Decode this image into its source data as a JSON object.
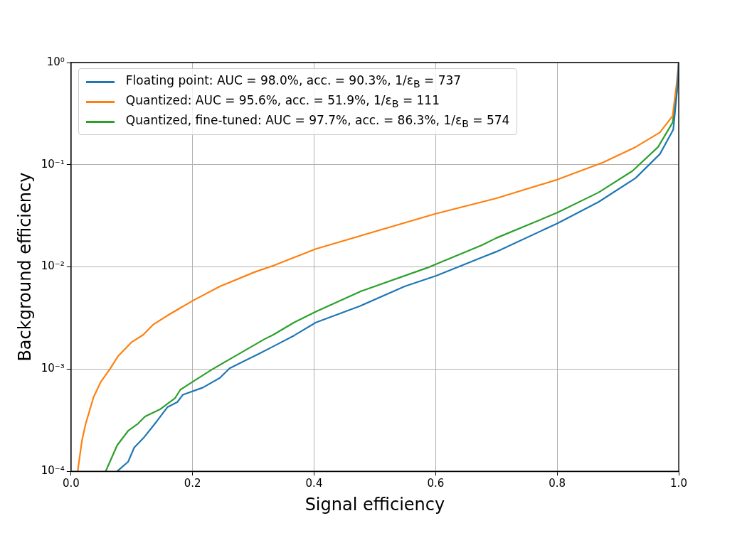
{
  "chart_data": {
    "type": "line",
    "xlabel": "Signal efficiency",
    "ylabel": "Background efficiency",
    "log": "y",
    "grid": true,
    "legend": "top left",
    "marker": "none",
    "line_style": "solid",
    "xlim": [
      0,
      1
    ],
    "xticks": [
      {
        "value": 0,
        "label": "0.0"
      },
      0.2,
      0.4,
      0.6,
      0.8,
      {
        "value": 1,
        "label": "1.0"
      }
    ],
    "ylim": [
      0.0001,
      1
    ],
    "yticks": [
      {
        "value": 0.0001,
        "label": "10⁻⁴"
      },
      {
        "value": 0.001,
        "label": "10⁻³"
      },
      {
        "value": 0.01,
        "label": "10⁻²"
      },
      {
        "value": 0.1,
        "label": "10⁻¹"
      },
      {
        "value": 1,
        "label": "10⁰"
      }
    ],
    "series": [
      {
        "name": "Floating point: AUC = 98.0%, acc. = 90.3%, 1/ε$_{B}$ = 737",
        "color": "#1f77b4",
        "x": [
          0.076,
          0.094,
          0.104,
          0.119,
          0.141,
          0.159,
          0.175,
          0.184,
          0.217,
          0.245,
          0.261,
          0.31,
          0.333,
          0.367,
          0.403,
          0.476,
          0.549,
          0.601,
          0.676,
          0.7,
          0.8,
          0.868,
          0.929,
          0.969,
          0.991,
          0.998,
          1
        ],
        "values": [
          0.0001,
          0.000124,
          0.000171,
          0.000211,
          0.000308,
          0.000426,
          0.000476,
          0.000561,
          0.00066,
          0.00082,
          0.00102,
          0.00142,
          0.00167,
          0.00213,
          0.00286,
          0.00415,
          0.00645,
          0.0082,
          0.0124,
          0.0141,
          0.0266,
          0.0432,
          0.074,
          0.127,
          0.22,
          0.58,
          1
        ]
      },
      {
        "name": "Quantized: AUC = 95.6%, acc. = 51.9%, 1/ε$_{B}$ = 111",
        "color": "#ff7f0e",
        "x": [
          0.011,
          0.018,
          0.024,
          0.037,
          0.049,
          0.064,
          0.077,
          0.1,
          0.119,
          0.135,
          0.163,
          0.202,
          0.245,
          0.302,
          0.333,
          0.403,
          0.601,
          0.676,
          0.7,
          0.8,
          0.875,
          0.929,
          0.969,
          0.99,
          0.996,
          1
        ],
        "values": [
          0.0001,
          0.0002,
          0.00029,
          0.00053,
          0.00075,
          0.001,
          0.00133,
          0.00184,
          0.00217,
          0.00272,
          0.00347,
          0.00473,
          0.00645,
          0.0089,
          0.0103,
          0.015,
          0.0333,
          0.0432,
          0.047,
          0.0714,
          0.105,
          0.149,
          0.207,
          0.3,
          0.58,
          1
        ]
      },
      {
        "name": "Quantized, fine-tuned: AUC = 97.7%, acc. = 86.3%, 1/ε$_{B}$ = 574",
        "color": "#2ca02c",
        "x": [
          0.057,
          0.076,
          0.094,
          0.11,
          0.122,
          0.147,
          0.171,
          0.18,
          0.204,
          0.233,
          0.269,
          0.318,
          0.333,
          0.367,
          0.403,
          0.476,
          0.59,
          0.676,
          0.7,
          0.8,
          0.868,
          0.924,
          0.966,
          0.99,
          0.998,
          1
        ],
        "values": [
          0.0001,
          0.00018,
          0.000249,
          0.000292,
          0.000344,
          0.000406,
          0.000518,
          0.00063,
          0.000777,
          0.001,
          0.00133,
          0.00196,
          0.00217,
          0.00286,
          0.00365,
          0.00575,
          0.01,
          0.0163,
          0.0192,
          0.0339,
          0.0535,
          0.087,
          0.149,
          0.259,
          0.58,
          1
        ]
      }
    ]
  }
}
